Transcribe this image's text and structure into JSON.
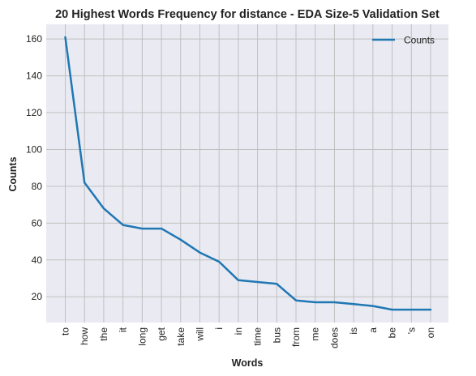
{
  "chart_data": {
    "type": "line",
    "title": "20 Highest Words Frequency for distance - EDA Size-5 Validation Set",
    "xlabel": "Words",
    "ylabel": "Counts",
    "categories": [
      "to",
      "how",
      "the",
      "it",
      "long",
      "get",
      "take",
      "will",
      "i",
      "in",
      "time",
      "bus",
      "from",
      "me",
      "does",
      "is",
      "a",
      "be",
      "'s",
      "on"
    ],
    "series": [
      {
        "name": "Counts",
        "values": [
          161,
          82,
          68,
          59,
          57,
          57,
          51,
          44,
          39,
          29,
          28,
          27,
          18,
          17,
          17,
          16,
          15,
          13,
          13,
          13
        ]
      }
    ],
    "ylim": [
      6,
      168
    ],
    "yticks": [
      20,
      40,
      60,
      80,
      100,
      120,
      140,
      160
    ],
    "grid": true,
    "legend_position": "top-right",
    "colors": {
      "line": "#1f77b4",
      "background": "#eaeaf2",
      "grid": "#c0c0c0"
    }
  }
}
